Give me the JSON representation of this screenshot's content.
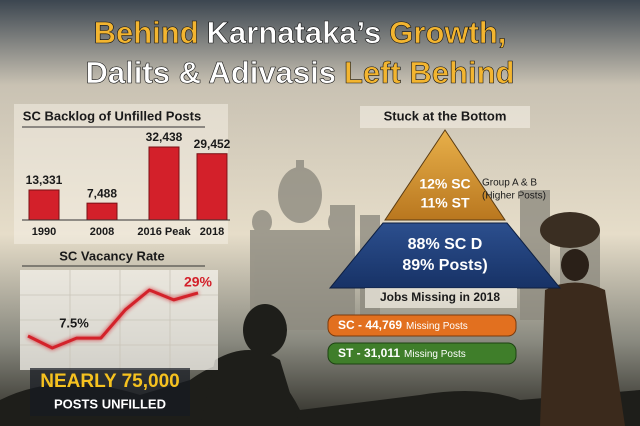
{
  "title": {
    "line1": [
      "Behind",
      "Karnataka’s",
      "Growth,"
    ],
    "line2": [
      "Dalits & Adivasis",
      "Left Behind"
    ]
  },
  "chart_data": [
    {
      "type": "bar",
      "title": "SC Backlog of Unfilled Posts",
      "categories": [
        "1990",
        "2008",
        "2016 Peak",
        "2018"
      ],
      "values": [
        13331,
        7488,
        32438,
        29452
      ],
      "value_labels": [
        "13,331",
        "7,488",
        "32,438",
        "29,452"
      ],
      "color": "#d3202a"
    },
    {
      "type": "line",
      "title": "SC Vacancy Rate",
      "categories": [
        null,
        null,
        null,
        null,
        null,
        null,
        null,
        null
      ],
      "values": [
        8.5,
        2.8,
        7.5,
        7.5,
        20.9,
        30.4,
        25.7,
        29
      ],
      "value_labels": [
        null,
        null,
        null,
        "7.5%",
        null,
        null,
        null,
        "29%"
      ],
      "color": "#d3202a"
    }
  ],
  "pyramid": {
    "title": "Stuck at the Bottom",
    "top": {
      "line1": "12% SC",
      "line2": "11% ST",
      "note1": "Group A & B",
      "note2": "(Higher Posts)"
    },
    "bottom": {
      "line1": "88% SC D",
      "line2": "89% Posts)"
    }
  },
  "jobs_missing": {
    "title": "Jobs Missing in 2018",
    "rows": [
      {
        "label": "SC - 44,769",
        "note": "Missing Posts"
      },
      {
        "label": "ST - 31,011",
        "note": "Missing Posts"
      }
    ]
  },
  "callout": {
    "line1": "NEARLY 75,000",
    "line2": "POSTS UNFILLED"
  }
}
